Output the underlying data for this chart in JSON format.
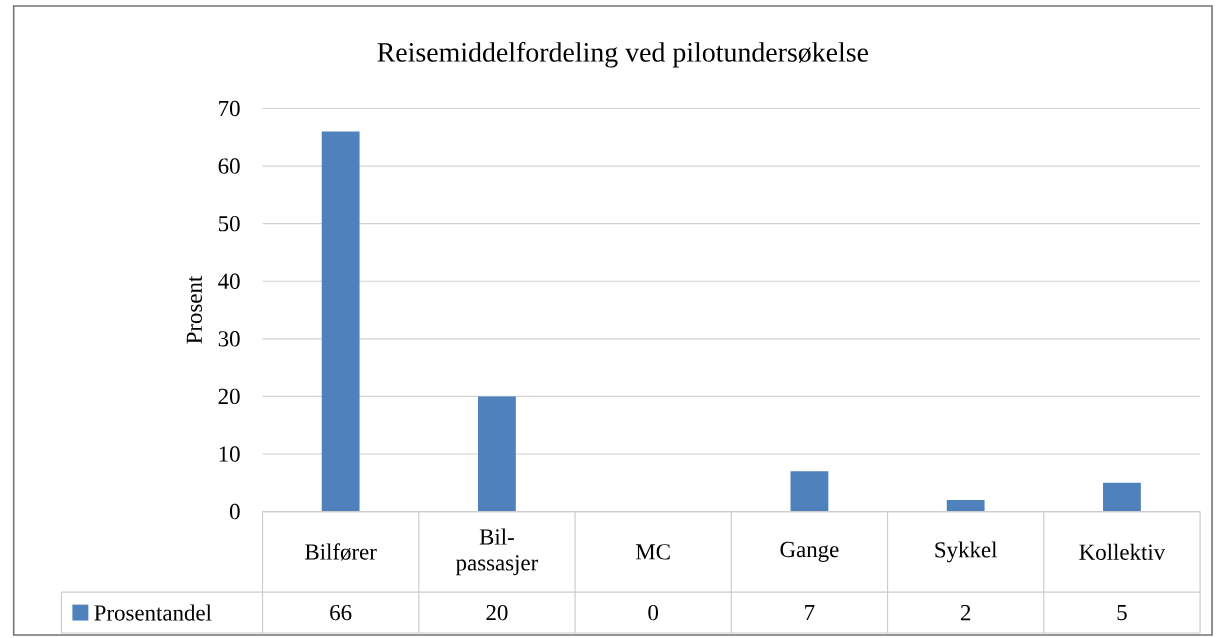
{
  "chart_data": {
    "type": "bar",
    "title": "Reisemiddelfordeling  ved pilotundersøkelse",
    "ylabel": "Prosent",
    "categories": [
      "Bilfører",
      "Bil-passasjer",
      "MC",
      "Gange",
      "Sykkel",
      "Kollektiv"
    ],
    "series": [
      {
        "name": "Prosentandel",
        "color": "#4f81bd",
        "values": [
          66,
          20,
          0,
          7,
          2,
          5
        ]
      }
    ],
    "ylim": [
      0,
      70
    ],
    "yticks": [
      0,
      10,
      20,
      30,
      40,
      50,
      60,
      70
    ],
    "grid": "y",
    "legend": "bottom",
    "data_labels": true
  }
}
